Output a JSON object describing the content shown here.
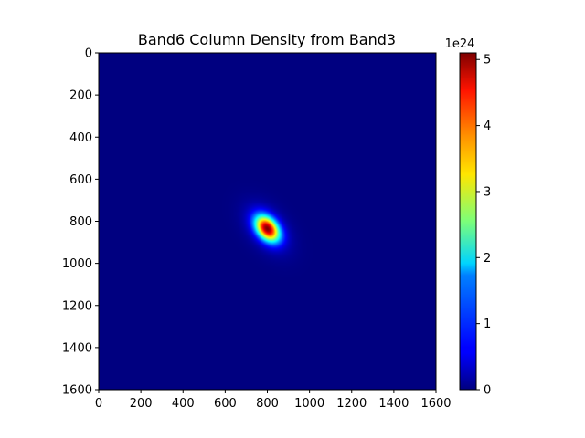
{
  "chart_data": {
    "type": "heatmap",
    "title": "Band6 Column Density from Band3",
    "xlabel": "",
    "ylabel": "",
    "xlim": [
      0,
      1600
    ],
    "ylim": [
      1600,
      0
    ],
    "x_ticks": [
      0,
      200,
      400,
      600,
      800,
      1000,
      1200,
      1400,
      1600
    ],
    "y_ticks": [
      0,
      200,
      400,
      600,
      800,
      1000,
      1200,
      1400,
      1600
    ],
    "colormap": "jet",
    "colorbar": {
      "range": [
        0,
        5.1
      ],
      "ticks": [
        0,
        1,
        2,
        3,
        4,
        5
      ],
      "offset_label": "1e24"
    },
    "source": {
      "center": [
        800,
        835
      ],
      "peak": 5.1,
      "sigma_major": 48,
      "sigma_minor": 32,
      "angle_deg": 50,
      "halo_amplitude": 0.55,
      "halo_sigma_major": 90,
      "halo_sigma_minor": 55
    },
    "grid": false
  }
}
